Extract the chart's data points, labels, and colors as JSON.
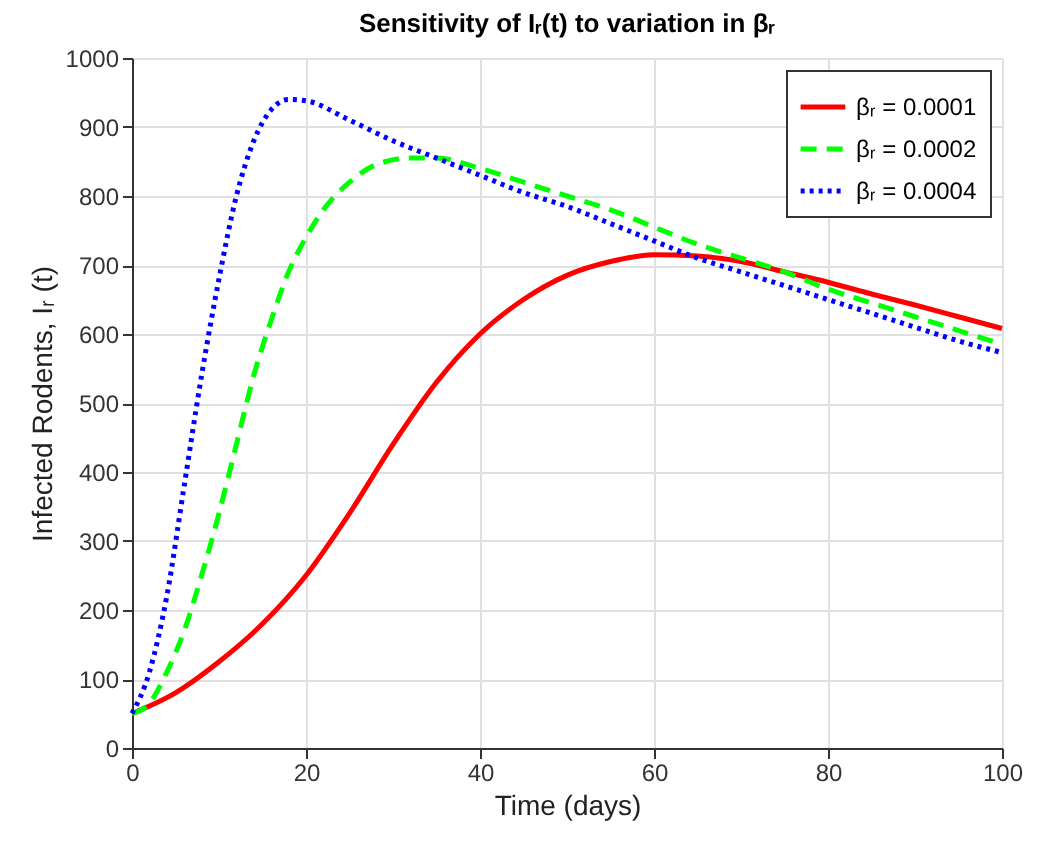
{
  "chart_data": {
    "type": "line",
    "title": "Sensitivity of Iᵣ(t) to variation in βᵣ",
    "xlabel": "Time (days)",
    "ylabel": "Infected Rodents, Iᵣ (t)",
    "xlim": [
      0,
      100
    ],
    "xticks": [
      0,
      20,
      40,
      60,
      80,
      100
    ],
    "ylim": [
      0,
      1000
    ],
    "yticks": [
      0,
      100,
      200,
      300,
      400,
      500,
      600,
      700,
      800,
      900,
      1000
    ],
    "grid": true,
    "legend": "top right",
    "series": [
      {
        "name": "βᵣ = 0.0001",
        "color": "#ff0000",
        "line_style": "solid",
        "x": [
          0,
          5,
          10,
          15,
          20,
          25,
          30,
          35,
          40,
          45,
          50,
          55,
          60,
          65,
          70,
          75,
          80,
          85,
          90,
          95,
          100
        ],
        "values": [
          50,
          80,
          125,
          180,
          250,
          340,
          440,
          530,
          600,
          650,
          685,
          705,
          715,
          713,
          705,
          690,
          675,
          658,
          642,
          625,
          608
        ]
      },
      {
        "name": "βᵣ = 0.0002",
        "color": "#00ff00",
        "line_style": "dashed",
        "x": [
          0,
          2,
          4,
          6,
          8,
          10,
          12,
          14,
          16,
          18,
          20,
          22,
          25,
          28,
          32,
          35,
          40,
          45,
          50,
          55,
          60,
          65,
          70,
          75,
          80,
          85,
          90,
          95,
          100
        ],
        "values": [
          50,
          65,
          110,
          170,
          250,
          340,
          440,
          540,
          620,
          690,
          740,
          780,
          820,
          845,
          855,
          855,
          840,
          820,
          800,
          780,
          755,
          730,
          710,
          690,
          665,
          645,
          625,
          605,
          585
        ]
      },
      {
        "name": "βᵣ = 0.0004",
        "color": "#0000ff",
        "line_style": "dotted",
        "x": [
          0,
          2,
          4,
          6,
          8,
          10,
          12,
          14,
          16,
          18,
          20,
          25,
          30,
          35,
          40,
          45,
          50,
          55,
          60,
          65,
          70,
          75,
          80,
          85,
          90,
          95,
          100
        ],
        "values": [
          50,
          110,
          220,
          380,
          540,
          680,
          800,
          880,
          925,
          940,
          938,
          910,
          880,
          855,
          830,
          805,
          785,
          760,
          735,
          710,
          690,
          670,
          650,
          630,
          610,
          590,
          573
        ]
      }
    ]
  }
}
